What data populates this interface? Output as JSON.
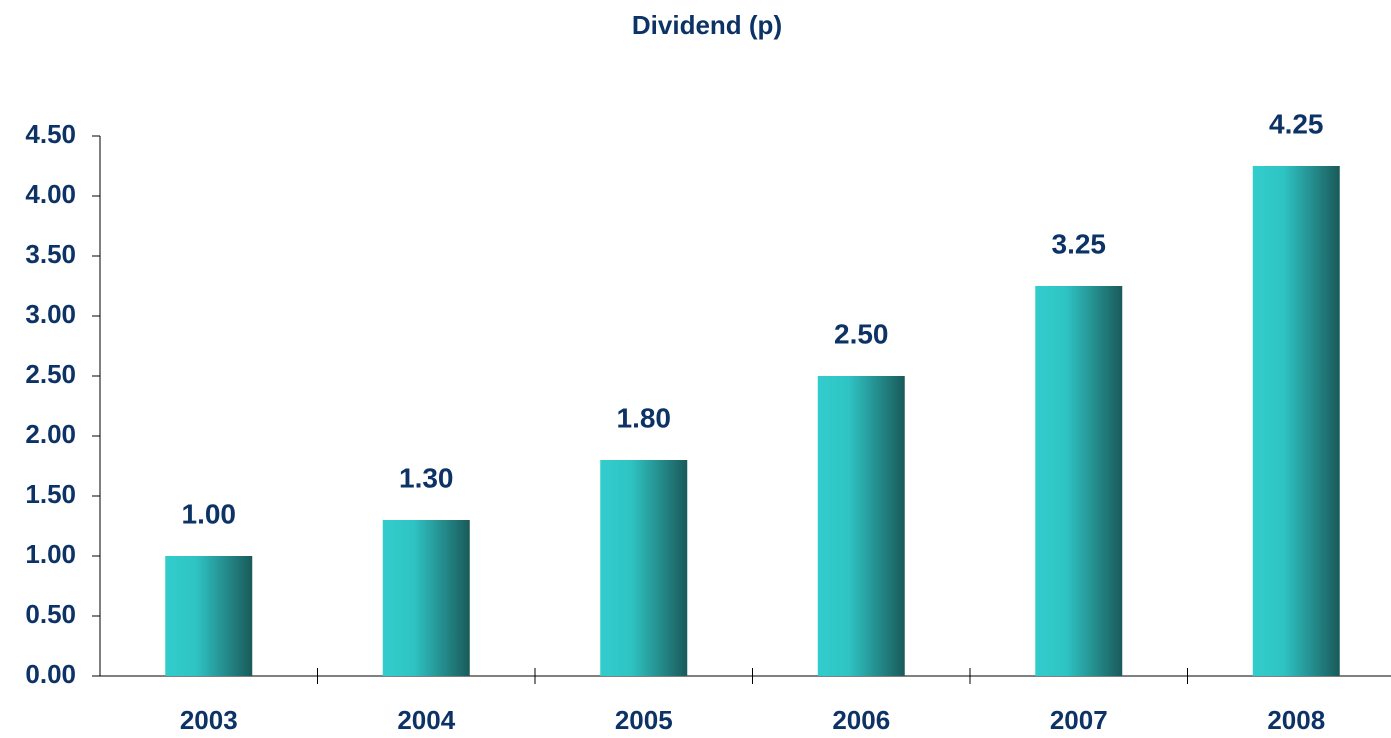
{
  "chart_data": {
    "type": "bar",
    "title": "Dividend (p)",
    "categories": [
      "2003",
      "2004",
      "2005",
      "2006",
      "2007",
      "2008"
    ],
    "values": [
      1.0,
      1.3,
      1.8,
      2.5,
      3.25,
      4.25
    ],
    "value_labels": [
      "1.00",
      "1.30",
      "1.80",
      "2.50",
      "3.25",
      "4.25"
    ],
    "color": "#33cccc",
    "ylim": [
      0,
      4.5
    ],
    "yticks": [
      {
        "value": 0,
        "label": "0.00"
      },
      {
        "value": 0.5,
        "label": "0.50"
      },
      {
        "value": 1,
        "label": "1.00"
      },
      {
        "value": 1.5,
        "label": "1.50"
      },
      {
        "value": 2,
        "label": "2.00"
      },
      {
        "value": 2.5,
        "label": "2.50"
      },
      {
        "value": 3,
        "label": "3.00"
      },
      {
        "value": 3.5,
        "label": "3.50"
      },
      {
        "value": 4,
        "label": "4.00"
      },
      {
        "value": 4.5,
        "label": "4.50"
      }
    ]
  }
}
